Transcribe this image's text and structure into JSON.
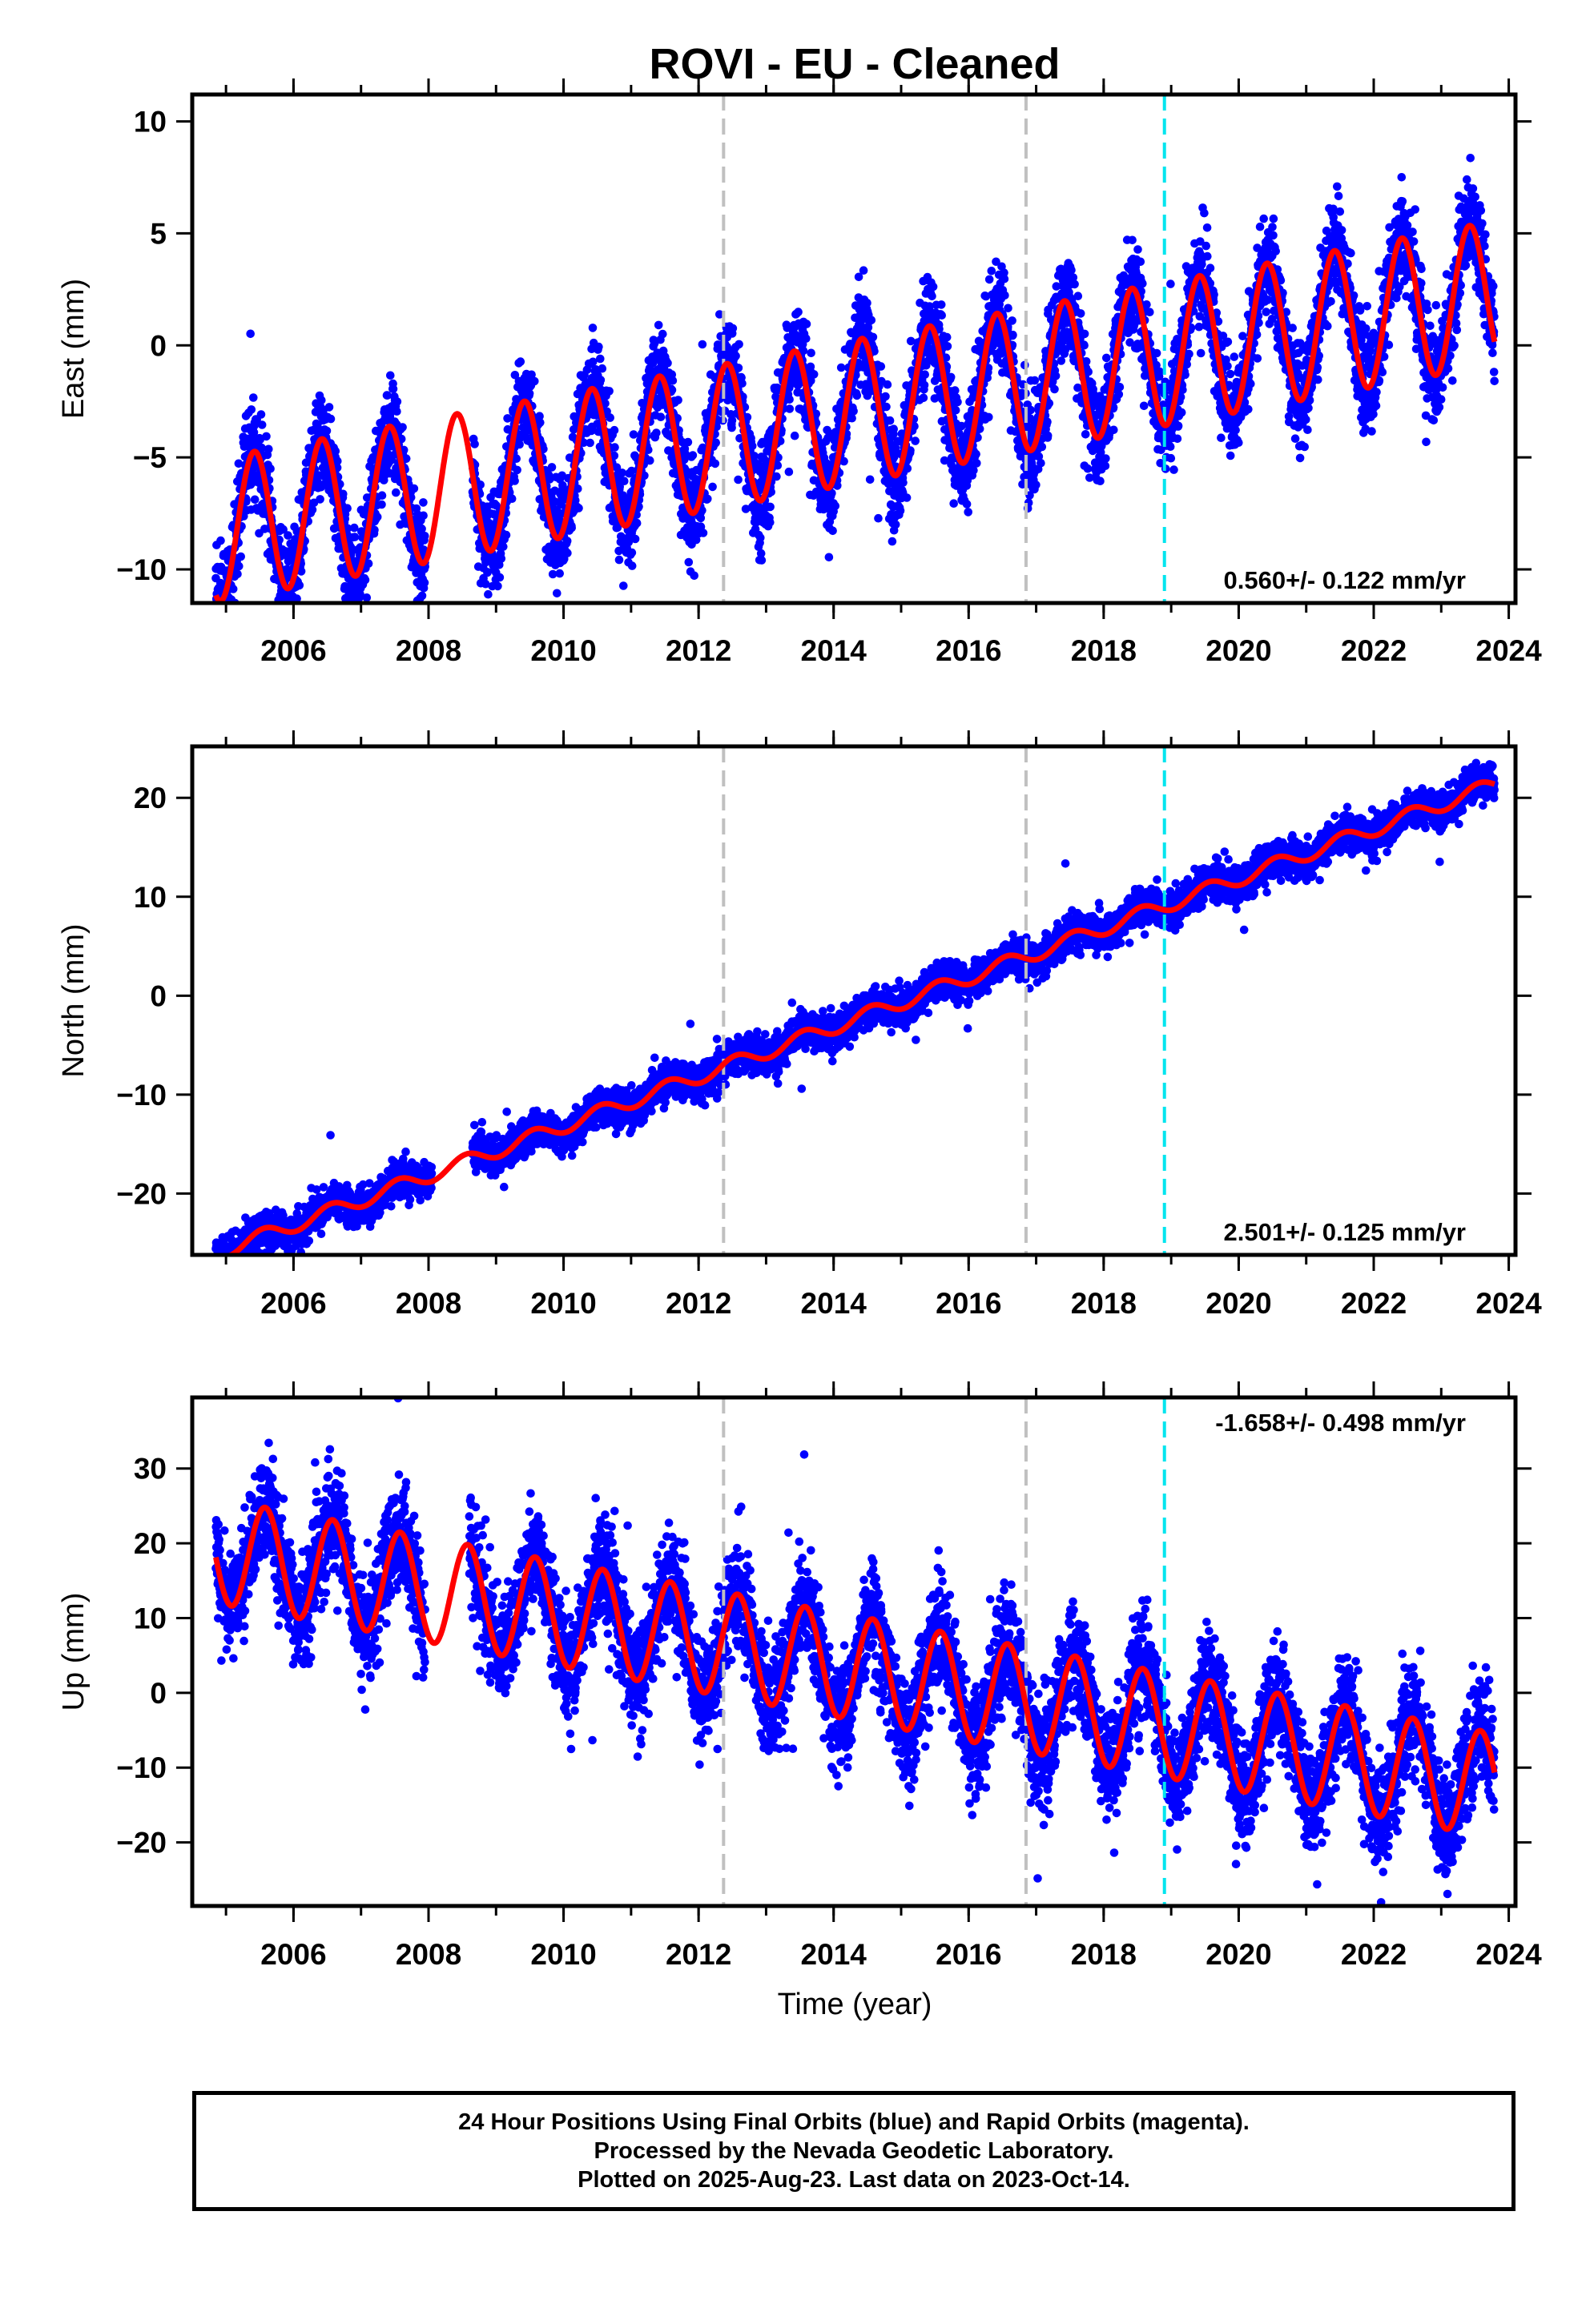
{
  "title": "ROVI  - EU - Cleaned",
  "xlabel": "Time (year)",
  "footer": {
    "line1": "24 Hour Positions Using Final Orbits (blue) and Rapid Orbits (magenta).",
    "line2": "Processed by the Nevada Geodetic Laboratory.",
    "line3": "Plotted on 2025-Aug-23. Last data on 2023-Oct-14."
  },
  "colors": {
    "points": "#0000ff",
    "model": "#ff0000",
    "equipment_change": "#c0c0c0",
    "earthquake": "#00e5ee"
  },
  "chart_data": [
    {
      "type": "scatter",
      "component": "East",
      "ylabel": "East (mm)",
      "xlim": [
        2004.5,
        2024.1
      ],
      "ylim": [
        -11.5,
        11.2
      ],
      "xticks": [
        2006,
        2008,
        2010,
        2012,
        2014,
        2016,
        2018,
        2020,
        2022,
        2024
      ],
      "yticks": [
        -10,
        -5,
        0,
        5,
        10
      ],
      "rate": "0.560+/- 0.122 mm/yr",
      "rate_position": "bottom-right",
      "vertical_lines": [
        {
          "x": 2012.37,
          "kind": "equipment_change"
        },
        {
          "x": 2016.85,
          "kind": "equipment_change"
        },
        {
          "x": 2018.9,
          "kind": "earthquake"
        }
      ],
      "model": {
        "offset": -2.85,
        "rate": 0.56,
        "t0": 2014.5,
        "amplitude": 3.2,
        "peak_phase": 0.42,
        "start": 2004.85,
        "end": 2023.79
      },
      "data": {
        "start": 2004.85,
        "end": 2023.79,
        "gaps": [
          [
            2007.95,
            2008.65
          ]
        ],
        "scatter_sd": 1.1
      }
    },
    {
      "type": "scatter",
      "component": "North",
      "ylabel": "North (mm)",
      "xlim": [
        2004.5,
        2024.1
      ],
      "ylim": [
        -26.2,
        25.2
      ],
      "xticks": [
        2006,
        2008,
        2010,
        2012,
        2014,
        2016,
        2018,
        2020,
        2022,
        2024
      ],
      "yticks": [
        -20,
        -10,
        0,
        10,
        20
      ],
      "rate": "2.501+/- 0.125 mm/yr",
      "rate_position": "bottom-right",
      "vertical_lines": [
        {
          "x": 2012.37,
          "kind": "equipment_change"
        },
        {
          "x": 2016.85,
          "kind": "equipment_change"
        },
        {
          "x": 2018.9,
          "kind": "earthquake"
        }
      ],
      "model": {
        "offset": -1.9,
        "rate": 2.501,
        "t0": 2014.5,
        "amplitude": 0.75,
        "peak_phase": 0.55,
        "start": 2004.85,
        "end": 2023.79
      },
      "data": {
        "start": 2004.85,
        "end": 2023.79,
        "gaps": [
          [
            2008.05,
            2008.65
          ]
        ],
        "scatter_sd": 0.9
      }
    },
    {
      "type": "scatter",
      "component": "Up",
      "ylabel": "Up (mm)",
      "xlim": [
        2004.5,
        2024.1
      ],
      "ylim": [
        -28.5,
        39.5
      ],
      "xticks": [
        2006,
        2008,
        2010,
        2012,
        2014,
        2016,
        2018,
        2020,
        2022,
        2024
      ],
      "yticks": [
        -20,
        -10,
        0,
        10,
        20,
        30
      ],
      "rate": "-1.658+/- 0.498 mm/yr",
      "rate_position": "top-right",
      "vertical_lines": [
        {
          "x": 2012.37,
          "kind": "equipment_change"
        },
        {
          "x": 2016.85,
          "kind": "equipment_change"
        },
        {
          "x": 2018.9,
          "kind": "earthquake"
        }
      ],
      "model": {
        "offset": 3.0,
        "rate": -1.658,
        "t0": 2014.5,
        "amplitude": 7.0,
        "peak_phase": 0.58,
        "start": 2004.85,
        "end": 2023.79
      },
      "data": {
        "start": 2004.85,
        "end": 2023.79,
        "gaps": [
          [
            2007.95,
            2008.6
          ]
        ],
        "scatter_sd": 3.6
      }
    }
  ]
}
